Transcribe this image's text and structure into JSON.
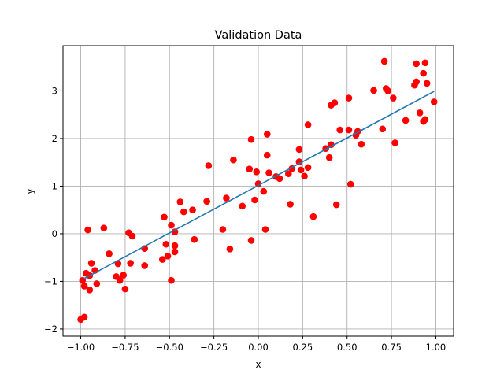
{
  "chart_data": {
    "type": "scatter",
    "title": "Validation Data",
    "xlabel": "x",
    "ylabel": "y",
    "xlim": [
      -1.1,
      1.1
    ],
    "ylim": [
      -2.15,
      3.95
    ],
    "xticks": [
      -1.0,
      -0.75,
      -0.5,
      -0.25,
      0.0,
      0.25,
      0.5,
      0.75,
      1.0
    ],
    "xtick_labels": [
      "−1.00",
      "−0.75",
      "−0.50",
      "−0.25",
      "0.00",
      "0.25",
      "0.50",
      "0.75",
      "1.00"
    ],
    "yticks": [
      -2,
      -1,
      0,
      1,
      2,
      3
    ],
    "ytick_labels": [
      "−2",
      "−1",
      "0",
      "1",
      "2",
      "3"
    ],
    "grid": true,
    "colors": {
      "points": "#ff0000",
      "line": "#1f77b4",
      "grid": "#b0b0b0"
    },
    "points": [
      [
        -1.0,
        -1.8
      ],
      [
        -0.98,
        -1.75
      ],
      [
        -0.99,
        -0.98
      ],
      [
        -0.98,
        -1.1
      ],
      [
        -0.97,
        -0.83
      ],
      [
        -0.96,
        0.08
      ],
      [
        -0.95,
        -0.88
      ],
      [
        -0.95,
        -1.18
      ],
      [
        -0.94,
        -0.62
      ],
      [
        -0.92,
        -0.77
      ],
      [
        -0.91,
        -1.05
      ],
      [
        -0.87,
        0.12
      ],
      [
        -0.84,
        -0.42
      ],
      [
        -0.8,
        -0.9
      ],
      [
        -0.79,
        -0.63
      ],
      [
        -0.78,
        -0.98
      ],
      [
        -0.76,
        -0.87
      ],
      [
        -0.75,
        -1.16
      ],
      [
        -0.73,
        0.02
      ],
      [
        -0.72,
        -0.62
      ],
      [
        -0.71,
        -0.05
      ],
      [
        -0.64,
        -0.31
      ],
      [
        -0.64,
        -0.67
      ],
      [
        -0.54,
        -0.54
      ],
      [
        -0.53,
        0.35
      ],
      [
        -0.52,
        -0.22
      ],
      [
        -0.51,
        -0.47
      ],
      [
        -0.49,
        -0.98
      ],
      [
        -0.49,
        0.18
      ],
      [
        -0.47,
        0.04
      ],
      [
        -0.47,
        -0.25
      ],
      [
        -0.47,
        -0.38
      ],
      [
        -0.44,
        0.67
      ],
      [
        -0.42,
        0.46
      ],
      [
        -0.37,
        0.5
      ],
      [
        -0.36,
        -0.12
      ],
      [
        -0.29,
        0.68
      ],
      [
        -0.28,
        1.43
      ],
      [
        -0.2,
        0.09
      ],
      [
        -0.18,
        0.75
      ],
      [
        -0.16,
        -0.32
      ],
      [
        -0.14,
        1.55
      ],
      [
        -0.09,
        0.58
      ],
      [
        -0.05,
        1.36
      ],
      [
        -0.04,
        1.98
      ],
      [
        -0.04,
        -0.14
      ],
      [
        -0.02,
        0.71
      ],
      [
        -0.01,
        1.3
      ],
      [
        0.0,
        1.05
      ],
      [
        0.03,
        0.89
      ],
      [
        0.04,
        0.09
      ],
      [
        0.05,
        2.09
      ],
      [
        0.05,
        1.65
      ],
      [
        0.06,
        1.28
      ],
      [
        0.1,
        1.2
      ],
      [
        0.12,
        1.16
      ],
      [
        0.17,
        1.26
      ],
      [
        0.18,
        0.62
      ],
      [
        0.19,
        1.37
      ],
      [
        0.23,
        1.51
      ],
      [
        0.23,
        1.77
      ],
      [
        0.24,
        1.34
      ],
      [
        0.26,
        1.21
      ],
      [
        0.28,
        1.39
      ],
      [
        0.28,
        2.29
      ],
      [
        0.31,
        0.36
      ],
      [
        0.38,
        1.79
      ],
      [
        0.4,
        1.6
      ],
      [
        0.41,
        1.87
      ],
      [
        0.41,
        2.7
      ],
      [
        0.43,
        2.75
      ],
      [
        0.44,
        0.61
      ],
      [
        0.46,
        2.18
      ],
      [
        0.51,
        2.18
      ],
      [
        0.51,
        2.85
      ],
      [
        0.52,
        1.04
      ],
      [
        0.55,
        2.07
      ],
      [
        0.56,
        2.15
      ],
      [
        0.58,
        1.88
      ],
      [
        0.65,
        3.01
      ],
      [
        0.7,
        2.2
      ],
      [
        0.71,
        3.62
      ],
      [
        0.72,
        3.05
      ],
      [
        0.73,
        3.0
      ],
      [
        0.76,
        2.85
      ],
      [
        0.77,
        1.91
      ],
      [
        0.83,
        2.38
      ],
      [
        0.88,
        3.12
      ],
      [
        0.89,
        3.19
      ],
      [
        0.89,
        3.57
      ],
      [
        0.91,
        2.54
      ],
      [
        0.93,
        2.36
      ],
      [
        0.93,
        3.37
      ],
      [
        0.94,
        2.4
      ],
      [
        0.94,
        3.59
      ],
      [
        0.95,
        3.16
      ],
      [
        0.99,
        2.77
      ]
    ],
    "line": {
      "x": [
        -0.99,
        0.99
      ],
      "y": [
        -0.96,
        2.99
      ]
    }
  }
}
